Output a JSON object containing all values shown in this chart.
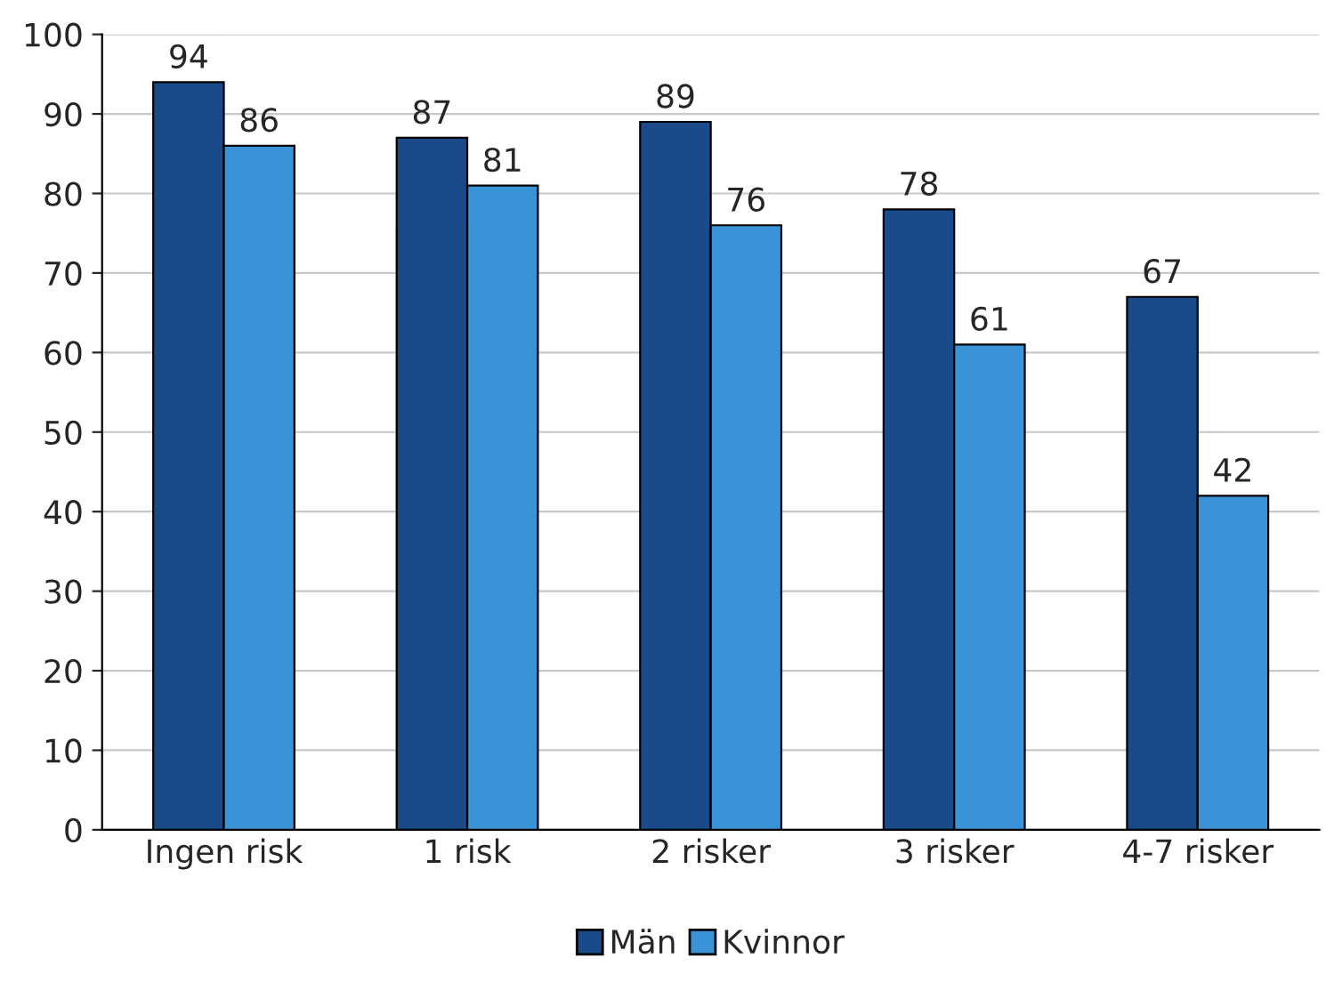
{
  "chart_data": {
    "type": "bar",
    "categories": [
      "Ingen risk",
      "1 risk",
      "2 risker",
      "3 risker",
      "4-7 risker"
    ],
    "series": [
      {
        "name": "Män",
        "color": "#1a4a8a",
        "values": [
          94,
          87,
          89,
          78,
          67
        ]
      },
      {
        "name": "Kvinnor",
        "color": "#3a93d6",
        "values": [
          86,
          81,
          76,
          61,
          42
        ]
      }
    ],
    "ylim": [
      0,
      100
    ],
    "yticks": [
      0,
      10,
      20,
      30,
      40,
      50,
      60,
      70,
      80,
      90,
      100
    ],
    "grid": "y",
    "legend": "bottom",
    "data_labels": true
  }
}
